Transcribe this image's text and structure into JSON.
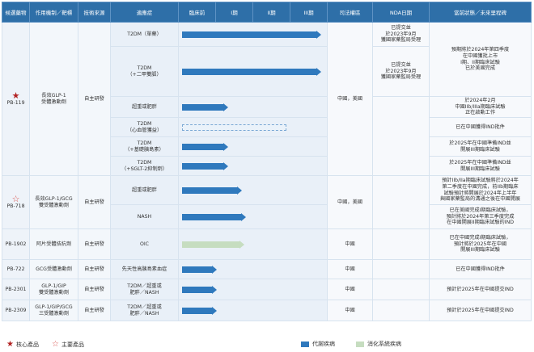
{
  "headers": {
    "candidate": "候選藥物",
    "moa": "作用機制／靶標",
    "source": "技術來源",
    "indication": "適應症",
    "preclinical": "臨床前",
    "p1": "I期",
    "p2": "II期",
    "p3": "III期",
    "territory": "司法權區",
    "nda": "NDA日期",
    "status": "當前狀態／未來里程碑"
  },
  "rows": {
    "r1": {
      "indication": "T2DM（單藥）",
      "progress": 0.98,
      "nda": "已提交並\n於2023年9月\n獲國家藥監局受理"
    },
    "r2": {
      "indication": "T2DM\n（+二甲雙胍）",
      "progress": 0.98,
      "nda": "已提交並\n於2023年9月\n獲國家藥監局受理"
    },
    "r3": {
      "indication": "超重或肥胖",
      "progress": 0.3
    },
    "r4": {
      "indication": "T2DM\n（心血管獲益）",
      "progress": 0.75
    },
    "r5": {
      "indication": "T2DM\n（+基礎胰島素）",
      "progress": 0.3
    },
    "r6": {
      "indication": "T2DM\n（+SGLT-2抑制劑）",
      "progress": 0.3
    },
    "r7": {
      "indication": "超重或肥胖",
      "progress": 0.4
    },
    "r8": {
      "indication": "NASH",
      "progress": 0.43
    },
    "r9": {
      "indication": "OIC",
      "progress": 0.42
    },
    "r10": {
      "indication": "先天性高胰島素血症",
      "progress": 0.22
    },
    "r11": {
      "indication": "T2DM／超重或\n肥胖／NASH",
      "progress": 0.22
    },
    "r12": {
      "indication": "T2DM／超重或\n肥胖／NASH",
      "progress": 0.22
    }
  },
  "groups": {
    "pb119": {
      "name": "PB-119",
      "moa": "長效GLP-1\n受體激動劑",
      "source": "自主研發",
      "territory": "中國，美國",
      "status_a": "預期將於2024年第四季度\n在中國獲批上市\nI期、II期臨床試驗\n已於美國完成",
      "status_b": "於2024年2月\n中國IIb/IIIa期臨床試驗\n正在啟動工作",
      "status_c": "已在中國獲得IND批件",
      "status_d": "於2025年在中國準備IND並\n開展III期臨床試驗",
      "status_e": "於2025年在中國準備IND並\n開展III期臨床試驗"
    },
    "pb718": {
      "name": "PB-718",
      "moa": "長效GLP-1/GCG\n雙受體激動劑",
      "source": "自主研發",
      "territory": "中國，美國",
      "status_a": "預計IIb/IIa期臨床試驗將於2024年\n第二季度在中國完成，前IIb期臨床\n試驗預計將開展於2024年上半年\n與國家藥監局的溝通之後在中國開展",
      "status_b": "已在美國完成I期臨床試驗，\n預計將於2024年第三季度完成\n在中國開展II期臨床試驗的IND"
    },
    "pb1902": {
      "name": "PB-1902",
      "moa": "阿片受體拮抗劑",
      "source": "自主研發",
      "territory": "中國",
      "status": "已在中國完成I期臨床試驗，\n預計將於2025年在中國\n開展III期臨床試驗"
    },
    "pb722": {
      "name": "PB-722",
      "moa": "GCG受體激動劑",
      "source": "自主研發",
      "territory": "中國",
      "status": "已在中國獲得IND批件"
    },
    "pb2301": {
      "name": "PB-2301",
      "moa": "GLP-1/GIP\n雙受體激動劑",
      "source": "自主研發",
      "territory": "中國",
      "status": "預計於2025年在中國提交IND"
    },
    "pb2309": {
      "name": "PB-2309",
      "moa": "GLP-1/GIP/GCG\n三受體激動劑",
      "source": "自主研發",
      "territory": "中國",
      "status": "預計於2025年在中國提交IND"
    }
  },
  "legend": {
    "core": "核心產品",
    "key": "主要產品",
    "metabolic": "代謝疾病",
    "gi": "消化系統疾病"
  },
  "colors": {
    "header": "#2e6fa8",
    "metabolic": "#2f79bd",
    "gi": "#c6ddc0",
    "star": "#b22222"
  }
}
